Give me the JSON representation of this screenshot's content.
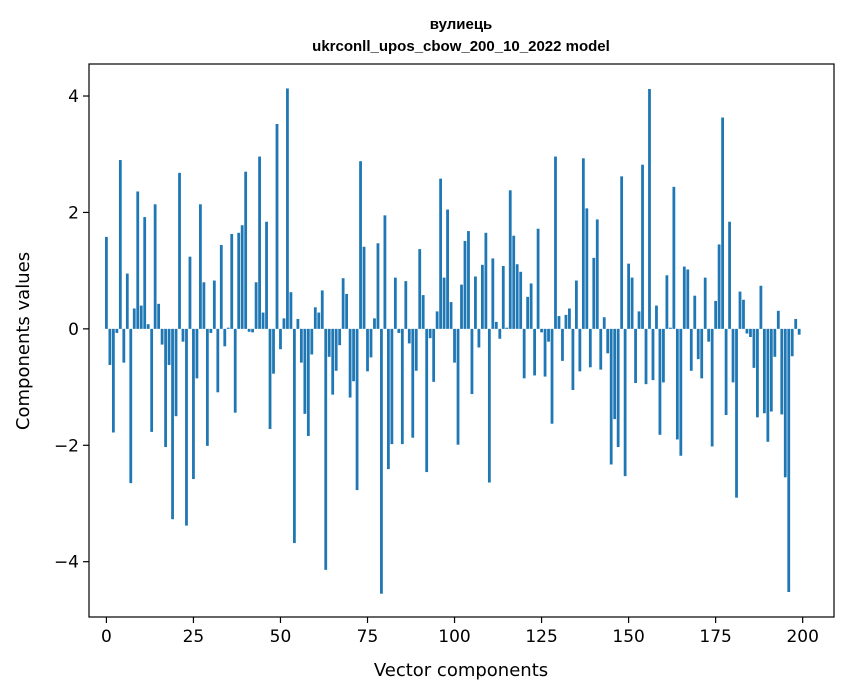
{
  "chart_data": {
    "type": "bar",
    "title": "вулиець",
    "subtitle": "ukrconll_upos_cbow_200_10_2022 model",
    "xlabel": "Vector components",
    "ylabel": "Components values",
    "xlim": [
      -5,
      209
    ],
    "ylim": [
      -4.95,
      4.55
    ],
    "xticks": [
      0,
      25,
      50,
      75,
      100,
      125,
      150,
      175,
      200
    ],
    "xtick_labels": [
      "0",
      "25",
      "50",
      "75",
      "100",
      "125",
      "150",
      "175",
      "200"
    ],
    "yticks": [
      -4,
      -2,
      0,
      2,
      4
    ],
    "ytick_labels": [
      "−4",
      "−2",
      "0",
      "2",
      "4"
    ],
    "grid": false,
    "bar_color": "#1f77b4",
    "x": [
      0,
      1,
      2,
      3,
      4,
      5,
      6,
      7,
      8,
      9,
      10,
      11,
      12,
      13,
      14,
      15,
      16,
      17,
      18,
      19,
      20,
      21,
      22,
      23,
      24,
      25,
      26,
      27,
      28,
      29,
      30,
      31,
      32,
      33,
      34,
      35,
      36,
      37,
      38,
      39,
      40,
      41,
      42,
      43,
      44,
      45,
      46,
      47,
      48,
      49,
      50,
      51,
      52,
      53,
      54,
      55,
      56,
      57,
      58,
      59,
      60,
      61,
      62,
      63,
      64,
      65,
      66,
      67,
      68,
      69,
      70,
      71,
      72,
      73,
      74,
      75,
      76,
      77,
      78,
      79,
      80,
      81,
      82,
      83,
      84,
      85,
      86,
      87,
      88,
      89,
      90,
      91,
      92,
      93,
      94,
      95,
      96,
      97,
      98,
      99,
      100,
      101,
      102,
      103,
      104,
      105,
      106,
      107,
      108,
      109,
      110,
      111,
      112,
      113,
      114,
      115,
      116,
      117,
      118,
      119,
      120,
      121,
      122,
      123,
      124,
      125,
      126,
      127,
      128,
      129,
      130,
      131,
      132,
      133,
      134,
      135,
      136,
      137,
      138,
      139,
      140,
      141,
      142,
      143,
      144,
      145,
      146,
      147,
      148,
      149,
      150,
      151,
      152,
      153,
      154,
      155,
      156,
      157,
      158,
      159,
      160,
      161,
      162,
      163,
      164,
      165,
      166,
      167,
      168,
      169,
      170,
      171,
      172,
      173,
      174,
      175,
      176,
      177,
      178,
      179,
      180,
      181,
      182,
      183,
      184,
      185,
      186,
      187,
      188,
      189,
      190,
      191,
      192,
      193,
      194,
      195,
      196,
      197,
      198,
      199
    ],
    "values": [
      1.58,
      -0.62,
      -1.78,
      -0.07,
      2.9,
      -0.58,
      0.95,
      -2.65,
      0.35,
      2.36,
      0.4,
      1.92,
      0.08,
      -1.77,
      2.14,
      0.43,
      -0.27,
      -2.03,
      -0.62,
      -3.27,
      -1.5,
      2.68,
      -0.22,
      -3.38,
      1.24,
      -2.58,
      -0.85,
      2.14,
      0.8,
      -2.01,
      -0.07,
      0.83,
      -1.09,
      1.44,
      -0.3,
      0.02,
      1.63,
      -1.44,
      1.65,
      1.78,
      2.7,
      -0.05,
      -0.06,
      0.8,
      2.96,
      0.28,
      1.84,
      -1.72,
      -0.77,
      3.52,
      -0.35,
      0.18,
      4.13,
      0.63,
      -3.68,
      0.17,
      -0.58,
      -1.46,
      -1.84,
      -0.44,
      0.37,
      0.28,
      0.66,
      -4.14,
      -0.48,
      -1.13,
      -0.72,
      -0.28,
      0.87,
      0.6,
      -1.18,
      -0.9,
      -2.77,
      2.88,
      1.41,
      -0.73,
      -0.49,
      0.18,
      1.47,
      -4.55,
      1.95,
      -2.41,
      -1.98,
      0.88,
      -0.07,
      -1.98,
      0.82,
      -0.25,
      -1.87,
      -0.72,
      1.37,
      0.58,
      -2.46,
      -0.16,
      -0.91,
      0.3,
      2.58,
      0.88,
      2.05,
      0.46,
      -0.58,
      -1.99,
      0.76,
      1.51,
      1.68,
      -1.12,
      0.9,
      -0.32,
      1.1,
      1.65,
      -2.64,
      1.21,
      0.12,
      -0.17,
      1.08,
      0.02,
      2.38,
      1.6,
      1.11,
      0.98,
      -0.85,
      0.55,
      0.78,
      -0.8,
      1.72,
      -0.06,
      -0.82,
      -0.22,
      -1.63,
      2.96,
      0.22,
      -0.55,
      0.24,
      0.35,
      -1.05,
      0.83,
      -0.73,
      2.93,
      2.07,
      -0.66,
      1.22,
      1.88,
      -0.7,
      0.2,
      -0.42,
      -2.33,
      -1.55,
      -2.03,
      2.62,
      -2.53,
      1.12,
      0.88,
      -0.93,
      0.3,
      2.82,
      -0.95,
      4.12,
      -0.88,
      0.4,
      -1.82,
      -0.92,
      0.92,
      0.02,
      2.44,
      -1.9,
      -2.18,
      1.07,
      1.02,
      -0.72,
      0.57,
      -0.52,
      -0.85,
      0.88,
      -0.22,
      -2.02,
      0.48,
      1.45,
      3.63,
      -1.48,
      1.84,
      -0.92,
      -2.9,
      0.64,
      0.5,
      -0.08,
      -0.14,
      -0.67,
      -1.52,
      0.74,
      -1.45,
      -1.94,
      -1.42,
      -0.48,
      0.31,
      -1.47,
      -2.55,
      -4.52,
      -0.47,
      0.17,
      -0.1
    ]
  }
}
